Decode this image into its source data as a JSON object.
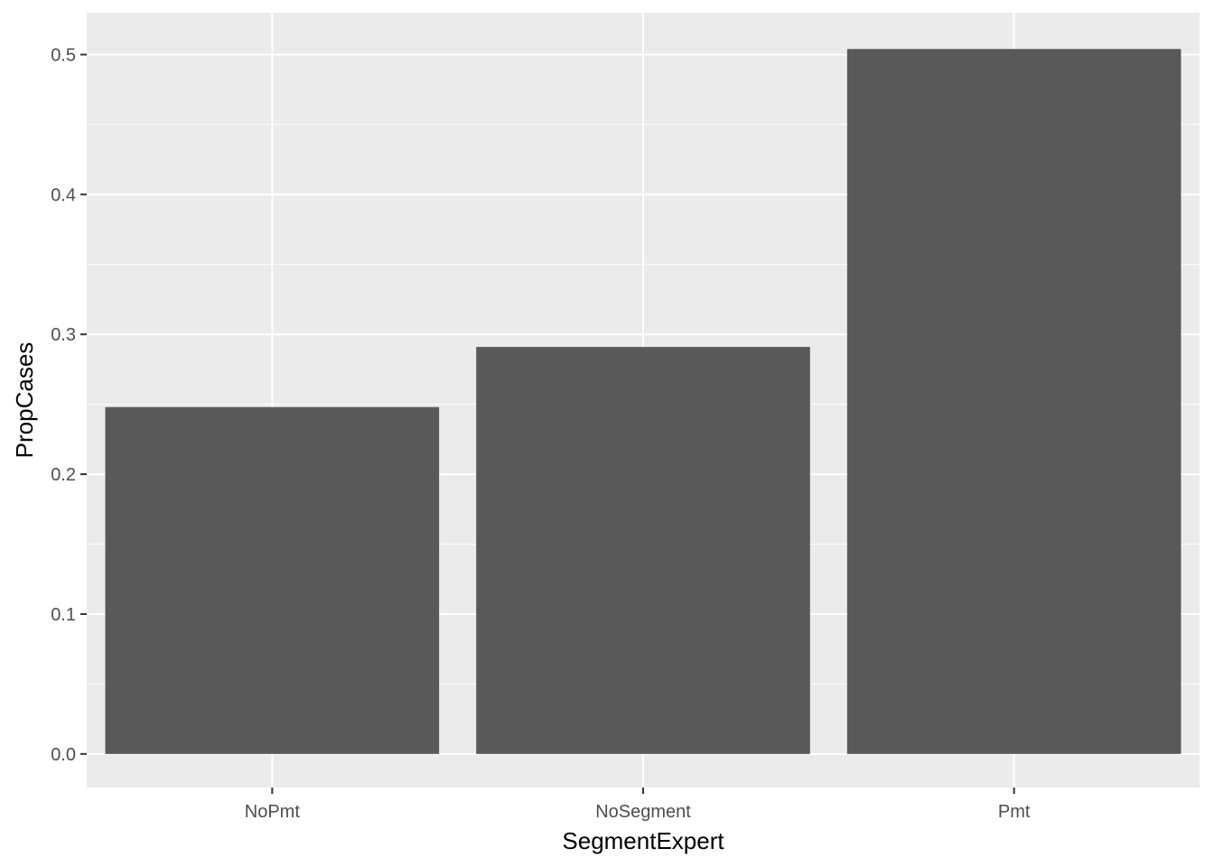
{
  "chart_data": {
    "type": "bar",
    "title": "",
    "xlabel": "SegmentExpert",
    "ylabel": "PropCases",
    "categories": [
      "NoPmt",
      "NoSegment",
      "Pmt"
    ],
    "values": [
      0.248,
      0.291,
      0.504
    ],
    "ylim": [
      -0.024,
      0.53
    ],
    "y_ticks": [
      "0.0",
      "0.1",
      "0.2",
      "0.3",
      "0.4",
      "0.5"
    ],
    "y_tick_values": [
      0,
      0.1,
      0.2,
      0.3,
      0.4,
      0.5
    ],
    "grid": true,
    "legend": "none",
    "colors": {
      "panel_background": "#EBEBEB",
      "grid_line": "#FFFFFF",
      "bar_fill": "#595959",
      "tick_label": "#4D4D4D",
      "tick_mark": "#333333",
      "axis_title": "#000000"
    }
  }
}
